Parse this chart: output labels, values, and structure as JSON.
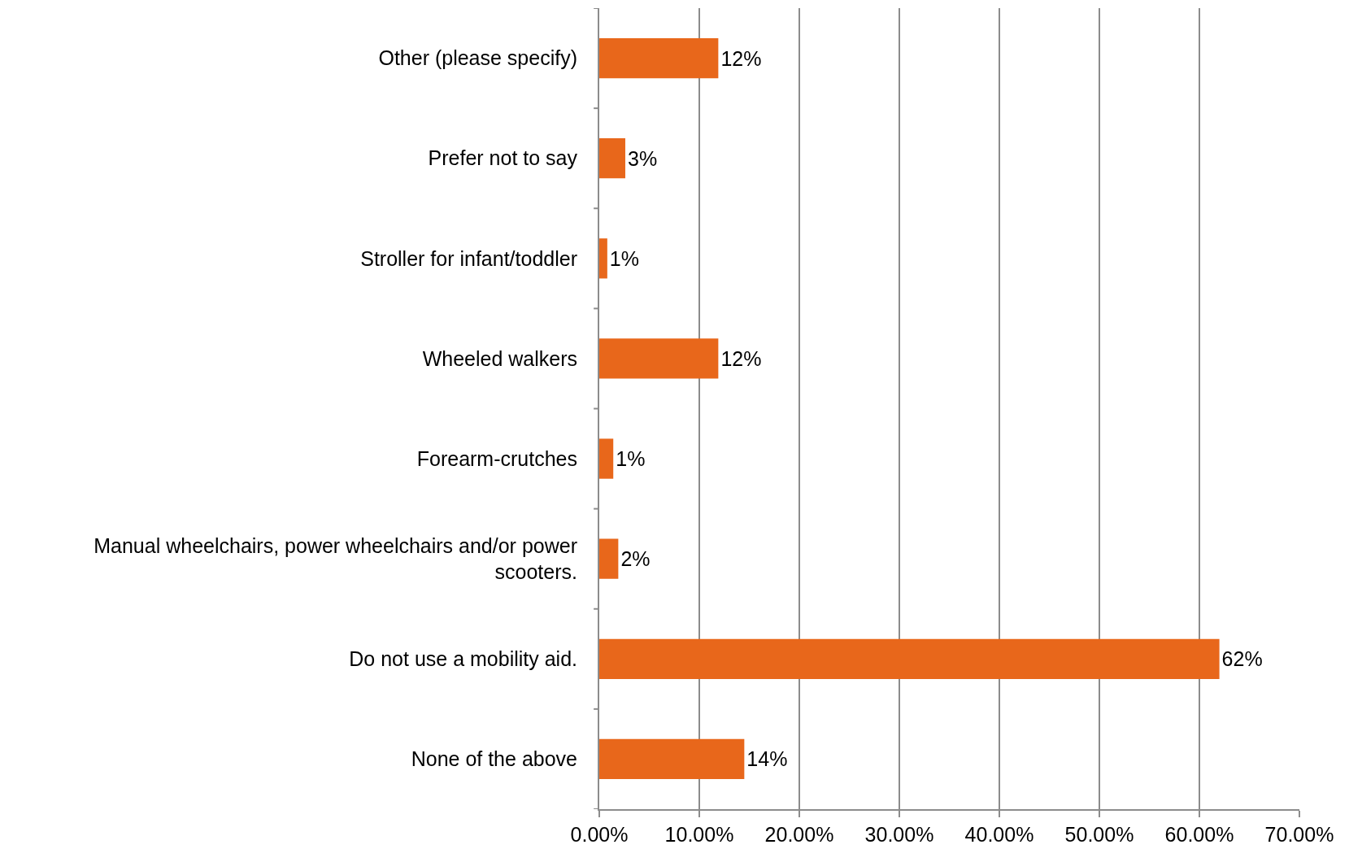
{
  "chart_data": {
    "type": "bar",
    "orientation": "horizontal",
    "categories": [
      "Other (please specify)",
      "Prefer not to say",
      "Stroller for infant/toddler",
      "Wheeled walkers",
      "Forearm-crutches",
      "Manual wheelchairs, power wheelchairs and/or power scooters.",
      "Do not use a mobility aid.",
      "None of the above"
    ],
    "values": [
      11.9,
      2.6,
      0.8,
      11.9,
      1.4,
      1.9,
      62.0,
      14.5
    ],
    "value_labels": [
      "12%",
      "3%",
      "1%",
      "12%",
      "1%",
      "2%",
      "62%",
      "14%"
    ],
    "color": "#e8671b",
    "xlim": [
      0,
      70
    ],
    "xticks": [
      {
        "value": 0,
        "label": "0.00%"
      },
      {
        "value": 10,
        "label": "10.00%"
      },
      {
        "value": 20,
        "label": "20.00%"
      },
      {
        "value": 30,
        "label": "30.00%"
      },
      {
        "value": 40,
        "label": "40.00%"
      },
      {
        "value": 50,
        "label": "50.00%"
      },
      {
        "value": 60,
        "label": "60.00%"
      },
      {
        "value": 70,
        "label": "70.00%"
      }
    ],
    "grid": "x",
    "legend": false
  }
}
